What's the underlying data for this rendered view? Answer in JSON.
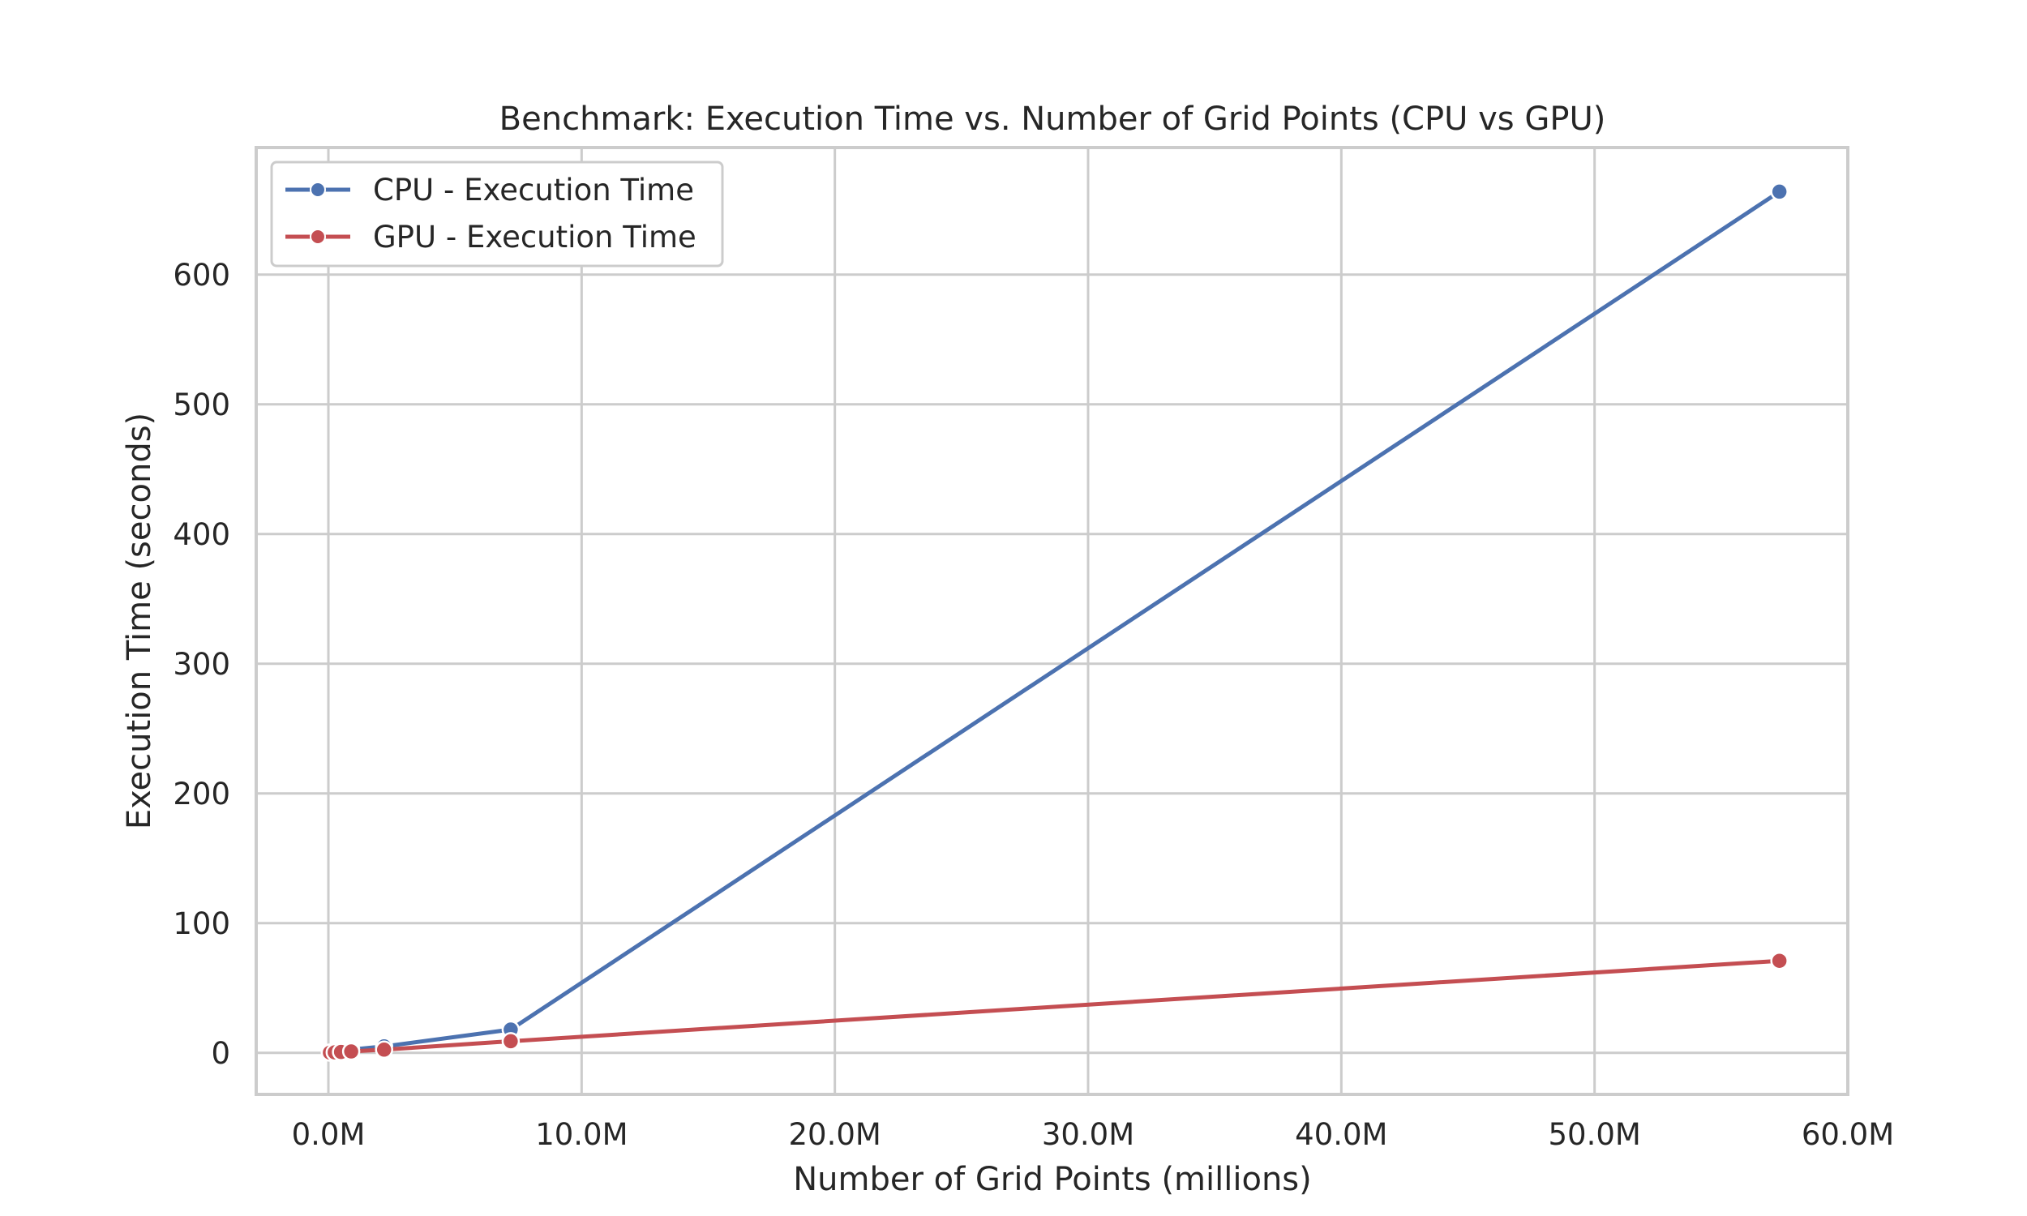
{
  "chart_data": {
    "type": "line",
    "title": "Benchmark: Execution Time vs. Number of Grid Points (CPU vs GPU)",
    "xlabel": "Number of Grid Points (millions)",
    "ylabel": "Execution Time (seconds)",
    "xlim": [
      -2.85,
      60.0
    ],
    "ylim": [
      -32,
      698
    ],
    "x_ticks": [
      0,
      10,
      20,
      30,
      40,
      50,
      60
    ],
    "x_tick_labels": [
      "0.0M",
      "10.0M",
      "20.0M",
      "30.0M",
      "40.0M",
      "50.0M",
      "60.0M"
    ],
    "y_ticks": [
      0,
      100,
      200,
      300,
      400,
      500,
      600
    ],
    "y_tick_labels": [
      "0",
      "100",
      "200",
      "300",
      "400",
      "500",
      "600"
    ],
    "grid": true,
    "legend": "top-left",
    "series": [
      {
        "name": "CPU - Execution Time",
        "color": "#4c72b0",
        "x": [
          0.06,
          0.25,
          0.5,
          0.9,
          2.2,
          7.2,
          57.3
        ],
        "y": [
          0.3,
          0.8,
          1.5,
          2.5,
          5.0,
          18.0,
          664.0
        ]
      },
      {
        "name": "GPU - Execution Time",
        "color": "#c44e52",
        "x": [
          0.06,
          0.25,
          0.5,
          0.9,
          2.2,
          7.2,
          57.3
        ],
        "y": [
          0.2,
          0.4,
          0.7,
          1.1,
          2.5,
          9.0,
          71.0
        ]
      }
    ]
  }
}
